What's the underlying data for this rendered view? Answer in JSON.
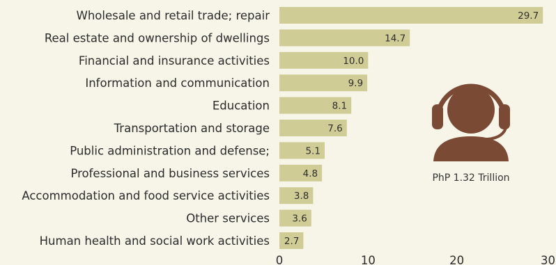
{
  "colors": {
    "background": "#f7f4e8",
    "bar": "#cfcd95",
    "text": "#2b2b2b",
    "icon": "#7a4a34"
  },
  "icon": {
    "name": "customer-service-agent-icon",
    "caption": "PhP 1.32 Trillion"
  },
  "chart_data": {
    "type": "bar",
    "orientation": "horizontal",
    "categories": [
      "Wholesale and retail trade; repair",
      "Real estate and ownership of dwellings",
      "Financial and insurance activities",
      "Information and communication",
      "Education",
      "Transportation and storage",
      "Public administration and defense;",
      "Professional and business services",
      "Accommodation and food service activities",
      "Other services",
      "Human health and social work activities"
    ],
    "values": [
      29.7,
      14.7,
      10.0,
      9.9,
      8.1,
      7.6,
      5.1,
      4.8,
      3.8,
      3.6,
      2.7
    ],
    "value_labels": [
      "29.7",
      "14.7",
      "10.0",
      "9.9",
      "8.1",
      "7.6",
      "5.1",
      "4.8",
      "3.8",
      "3.6",
      "2.7"
    ],
    "xlim": [
      0,
      30
    ],
    "xticks": [
      "0",
      "10",
      "20",
      "30"
    ],
    "grid": false,
    "legend": "none"
  }
}
